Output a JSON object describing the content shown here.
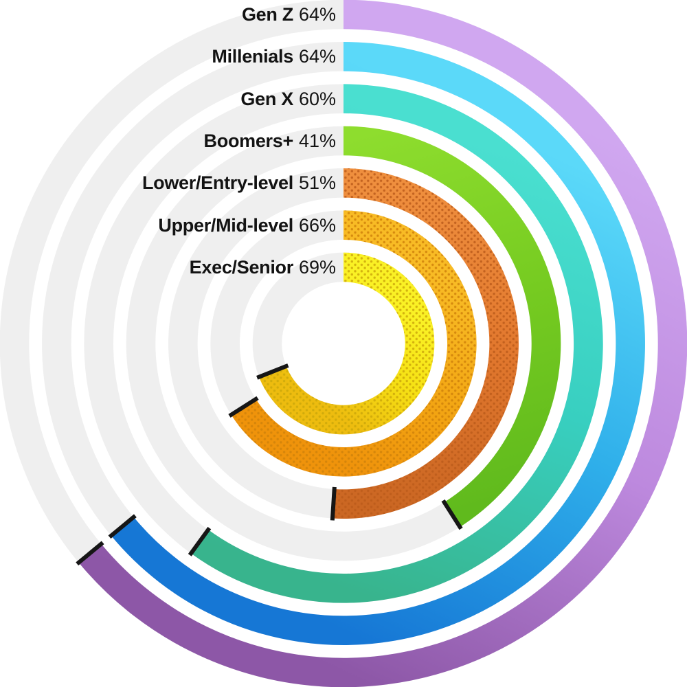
{
  "chart_data": {
    "type": "radial-bar",
    "title": "",
    "unit": "%",
    "start_angle_deg": 0,
    "direction": "clockwise",
    "rings_order": "outer-to-inner",
    "value_range": [
      0,
      100
    ],
    "track_color": "#efefef",
    "cap_color": "#161616",
    "label_color": "#131313",
    "background": "#ffffff",
    "series": [
      {
        "label": "Gen Z",
        "value": 64,
        "color_start": "#d0a7f0",
        "color_mid": "#bd89de",
        "color_end": "#8d57a7",
        "dotted": false,
        "dot_color": null
      },
      {
        "label": "Millenials",
        "value": 64,
        "color_start": "#5bd9f9",
        "color_mid": "#2fafea",
        "color_end": "#1677d5",
        "dotted": false,
        "dot_color": null
      },
      {
        "label": "Gen X",
        "value": 60,
        "color_start": "#4adfd0",
        "color_mid": "#38cfc0",
        "color_end": "#38b48d",
        "dotted": false,
        "dot_color": null
      },
      {
        "label": "Boomers+",
        "value": 41,
        "color_start": "#8edd2e",
        "color_mid": "#76cb21",
        "color_end": "#60ba1d",
        "dotted": false,
        "dot_color": null
      },
      {
        "label": "Lower/Entry-level",
        "value": 51,
        "color_start": "#ef8f3e",
        "color_mid": "#e2782e",
        "color_end": "#cb6723",
        "dotted": true,
        "dot_color": "#bc5c1b"
      },
      {
        "label": "Upper/Mid-level",
        "value": 66,
        "color_start": "#f8bb25",
        "color_mid": "#f3a714",
        "color_end": "#ef930b",
        "dotted": true,
        "dot_color": "#d0820a"
      },
      {
        "label": "Exec/Senior",
        "value": 69,
        "color_start": "#faf125",
        "color_mid": "#f6e114",
        "color_end": "#edbc0f",
        "dotted": true,
        "dot_color": "#cda80b"
      }
    ]
  }
}
